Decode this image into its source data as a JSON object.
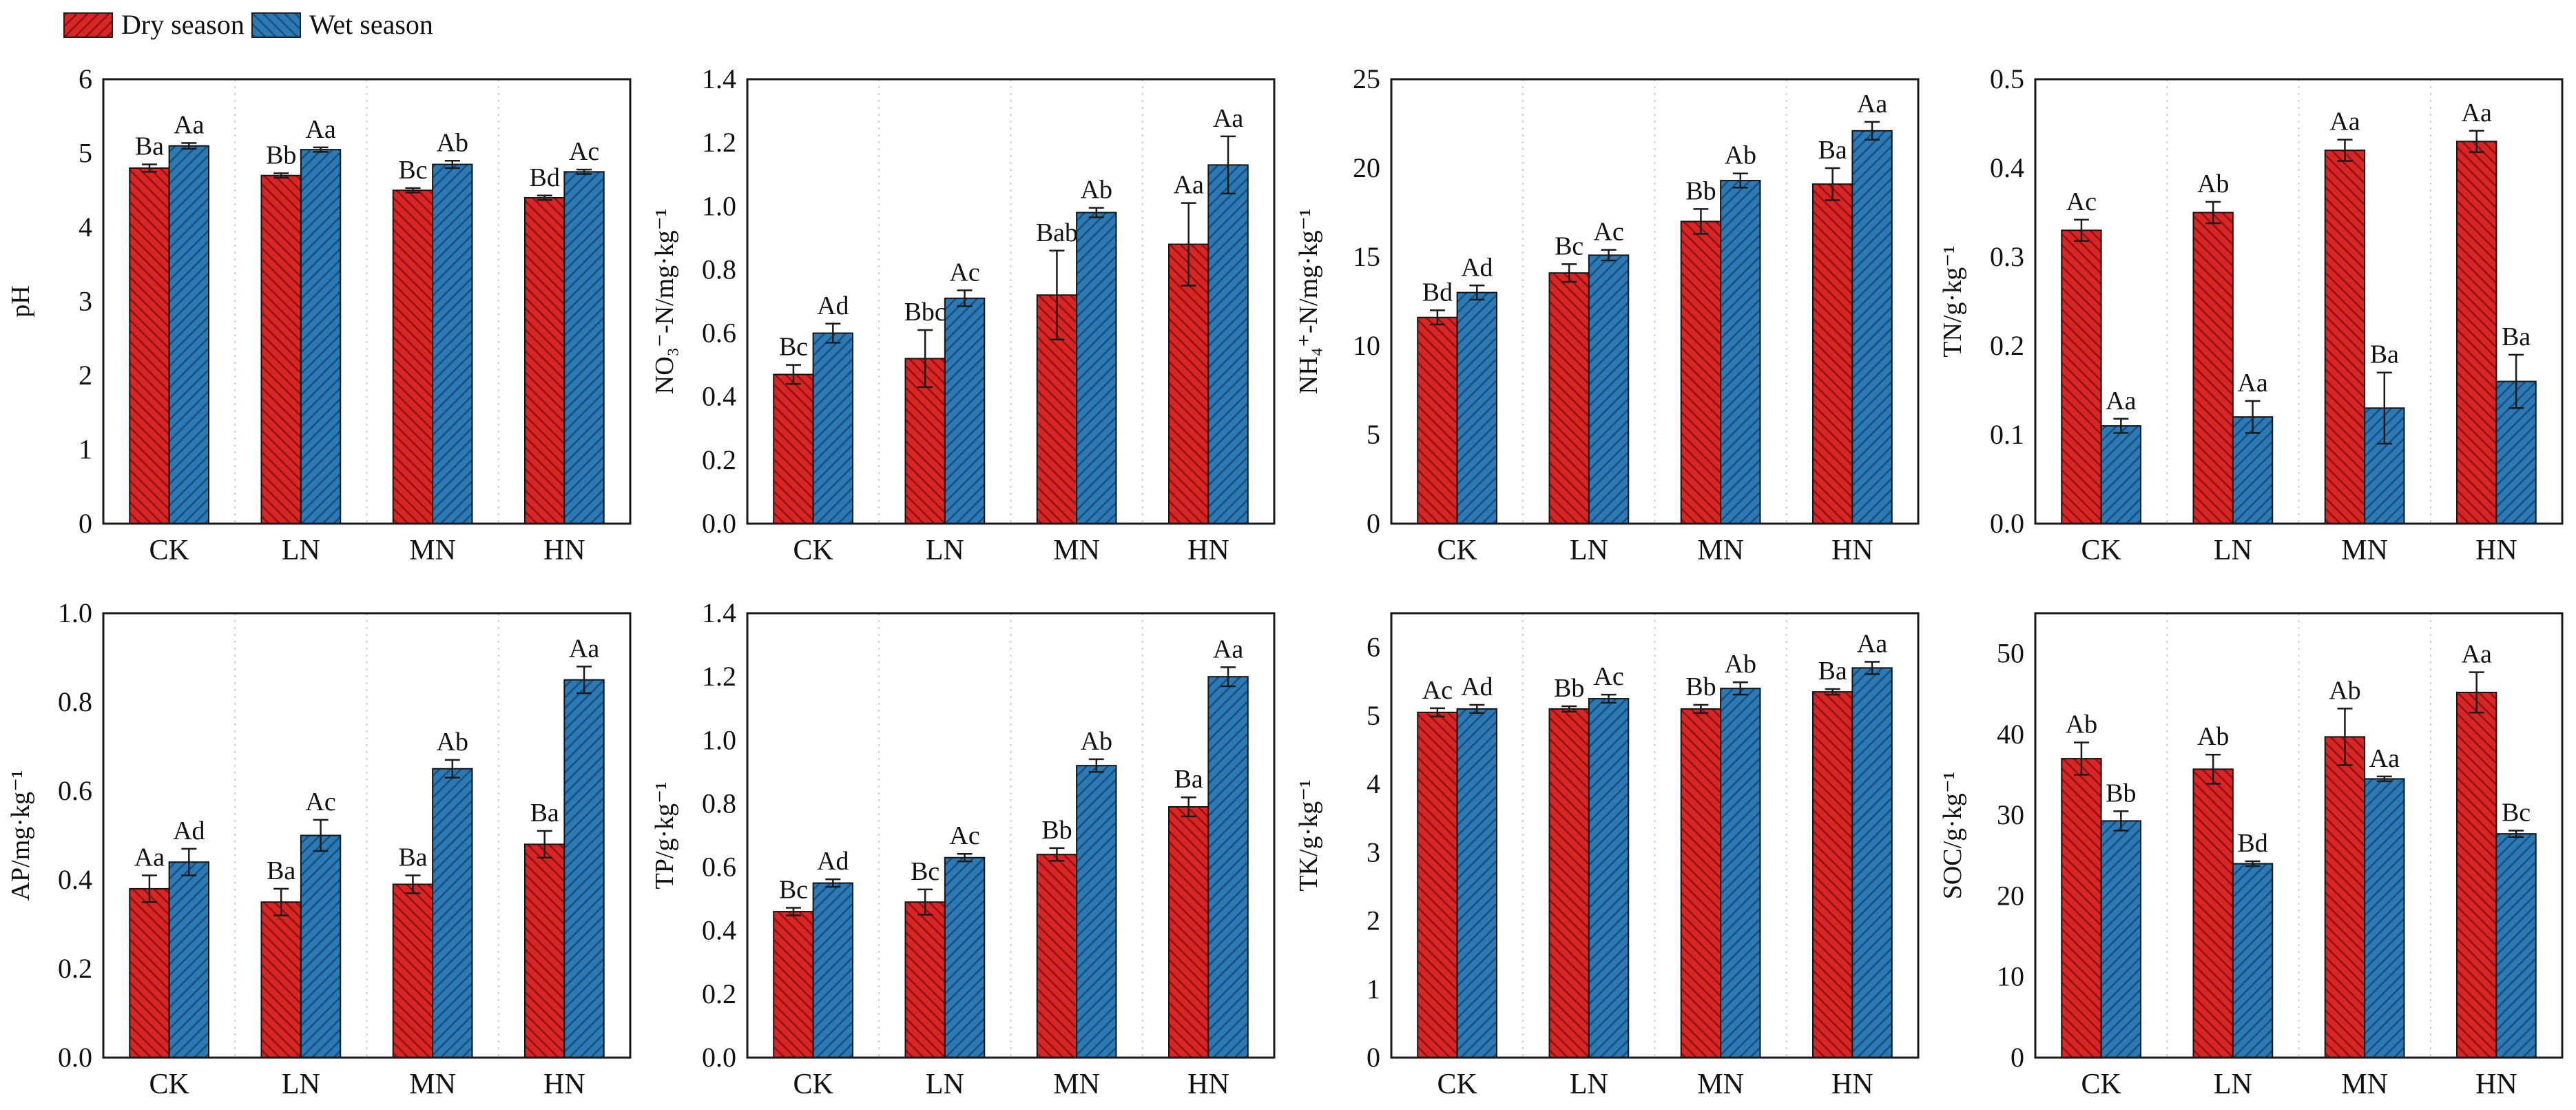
{
  "legend": {
    "items": [
      {
        "label": "Dry season",
        "fill": "#d92524",
        "hatch": "#8d1316",
        "hatch_direction": "forward"
      },
      {
        "label": "Wet season",
        "fill": "#2b7ab5",
        "hatch": "#17507d",
        "hatch_direction": "backward"
      }
    ]
  },
  "colors": {
    "dry_fill": "#d92524",
    "dry_hatch": "#8d1316",
    "wet_fill": "#2b7ab5",
    "wet_hatch": "#17507d",
    "frame": "#1a1a1a",
    "gridline": "#cccccc",
    "error_bar": "#1a1a1a"
  },
  "chart_data": [
    {
      "type": "bar",
      "name": "pH",
      "ylabel": "pH",
      "xlabel": "",
      "ylim": [
        0,
        6
      ],
      "grid": "vertical-dotted",
      "legend_position": "figure-top-left",
      "yticks": {
        "labels": [
          "0",
          "1",
          "2",
          "3",
          "4",
          "5",
          "6"
        ],
        "values": [
          0,
          1,
          2,
          3,
          4,
          5,
          6
        ]
      },
      "categories": [
        "CK",
        "LN",
        "MN",
        "HN"
      ],
      "series": [
        {
          "name": "Dry season",
          "values": [
            4.8,
            4.7,
            4.5,
            4.4
          ],
          "errors": [
            0.05,
            0.03,
            0.03,
            0.03
          ],
          "sig_labels": [
            "Ba",
            "Bb",
            "Bc",
            "Bd"
          ]
        },
        {
          "name": "Wet season",
          "values": [
            5.1,
            5.05,
            4.85,
            4.75
          ],
          "errors": [
            0.04,
            0.03,
            0.05,
            0.03
          ],
          "sig_labels": [
            "Aa",
            "Aa",
            "Ab",
            "Ac"
          ]
        }
      ]
    },
    {
      "type": "bar",
      "name": "NO3-N",
      "ylabel": "NO₃⁻-N/mg·kg⁻¹",
      "xlabel": "",
      "ylim": [
        0,
        1.4
      ],
      "grid": "vertical-dotted",
      "yticks": {
        "labels": [
          "0.0",
          "0.2",
          "0.4",
          "0.6",
          "0.8",
          "1.0",
          "1.2",
          "1.4"
        ],
        "values": [
          0,
          0.2,
          0.4,
          0.6,
          0.8,
          1.0,
          1.2,
          1.4
        ]
      },
      "categories": [
        "CK",
        "LN",
        "MN",
        "HN"
      ],
      "series": [
        {
          "name": "Dry season",
          "values": [
            0.47,
            0.52,
            0.72,
            0.88
          ],
          "errors": [
            0.03,
            0.09,
            0.14,
            0.13
          ],
          "sig_labels": [
            "Bc",
            "Bbc",
            "Bab",
            "Aa"
          ]
        },
        {
          "name": "Wet season",
          "values": [
            0.6,
            0.71,
            0.98,
            1.13
          ],
          "errors": [
            0.03,
            0.025,
            0.015,
            0.09
          ],
          "sig_labels": [
            "Ad",
            "Ac",
            "Ab",
            "Aa"
          ]
        }
      ]
    },
    {
      "type": "bar",
      "name": "NH4-N",
      "ylabel": "NH₄⁺-N/mg·kg⁻¹",
      "xlabel": "",
      "ylim": [
        0,
        25
      ],
      "grid": "vertical-dotted",
      "yticks": {
        "labels": [
          "0",
          "5",
          "10",
          "15",
          "20",
          "25"
        ],
        "values": [
          0,
          5,
          10,
          15,
          20,
          25
        ]
      },
      "categories": [
        "CK",
        "LN",
        "MN",
        "HN"
      ],
      "series": [
        {
          "name": "Dry season",
          "values": [
            11.6,
            14.1,
            17.0,
            19.1
          ],
          "errors": [
            0.4,
            0.5,
            0.7,
            0.9
          ],
          "sig_labels": [
            "Bd",
            "Bc",
            "Bb",
            "Ba"
          ]
        },
        {
          "name": "Wet season",
          "values": [
            13.0,
            15.1,
            19.3,
            22.1
          ],
          "errors": [
            0.4,
            0.3,
            0.4,
            0.5
          ],
          "sig_labels": [
            "Ad",
            "Ac",
            "Ab",
            "Aa"
          ]
        }
      ]
    },
    {
      "type": "bar",
      "name": "TN",
      "ylabel": "TN/g·kg⁻¹",
      "xlabel": "",
      "ylim": [
        0,
        0.5
      ],
      "grid": "vertical-dotted",
      "yticks": {
        "labels": [
          "0.0",
          "0.1",
          "0.2",
          "0.3",
          "0.4",
          "0.5"
        ],
        "values": [
          0,
          0.1,
          0.2,
          0.3,
          0.4,
          0.5
        ]
      },
      "categories": [
        "CK",
        "LN",
        "MN",
        "HN"
      ],
      "series": [
        {
          "name": "Dry season",
          "values": [
            0.33,
            0.35,
            0.42,
            0.43
          ],
          "errors": [
            0.012,
            0.012,
            0.012,
            0.012
          ],
          "sig_labels": [
            "Ac",
            "Ab",
            "Aa",
            "Aa"
          ]
        },
        {
          "name": "Wet season",
          "values": [
            0.11,
            0.12,
            0.13,
            0.16
          ],
          "errors": [
            0.008,
            0.018,
            0.04,
            0.03
          ],
          "sig_labels": [
            "Aa",
            "Aa",
            "Ba",
            "Ba"
          ]
        }
      ]
    },
    {
      "type": "bar",
      "name": "AP",
      "ylabel": "AP/mg·kg⁻¹",
      "xlabel": "",
      "ylim": [
        0,
        1.0
      ],
      "grid": "vertical-dotted",
      "yticks": {
        "labels": [
          "0.0",
          "0.2",
          "0.4",
          "0.6",
          "0.8",
          "1.0"
        ],
        "values": [
          0,
          0.2,
          0.4,
          0.6,
          0.8,
          1.0
        ]
      },
      "categories": [
        "CK",
        "LN",
        "MN",
        "HN"
      ],
      "series": [
        {
          "name": "Dry season",
          "values": [
            0.38,
            0.35,
            0.39,
            0.48
          ],
          "errors": [
            0.03,
            0.03,
            0.02,
            0.03
          ],
          "sig_labels": [
            "Aa",
            "Ba",
            "Ba",
            "Ba"
          ]
        },
        {
          "name": "Wet season",
          "values": [
            0.44,
            0.5,
            0.65,
            0.85
          ],
          "errors": [
            0.03,
            0.035,
            0.02,
            0.03
          ],
          "sig_labels": [
            "Ad",
            "Ac",
            "Ab",
            "Aa"
          ]
        }
      ]
    },
    {
      "type": "bar",
      "name": "TP",
      "ylabel": "TP/g·kg⁻¹",
      "xlabel": "",
      "ylim": [
        0,
        1.4
      ],
      "grid": "vertical-dotted",
      "yticks": {
        "labels": [
          "0.0",
          "0.2",
          "0.4",
          "0.6",
          "0.8",
          "1.0",
          "1.2",
          "1.4"
        ],
        "values": [
          0,
          0.2,
          0.4,
          0.6,
          0.8,
          1.0,
          1.2,
          1.4
        ]
      },
      "categories": [
        "CK",
        "LN",
        "MN",
        "HN"
      ],
      "series": [
        {
          "name": "Dry season",
          "values": [
            0.46,
            0.49,
            0.64,
            0.79
          ],
          "errors": [
            0.012,
            0.04,
            0.02,
            0.03
          ],
          "sig_labels": [
            "Bc",
            "Bc",
            "Bb",
            "Ba"
          ]
        },
        {
          "name": "Wet season",
          "values": [
            0.55,
            0.63,
            0.92,
            1.2
          ],
          "errors": [
            0.012,
            0.012,
            0.02,
            0.03
          ],
          "sig_labels": [
            "Ad",
            "Ac",
            "Ab",
            "Aa"
          ]
        }
      ]
    },
    {
      "type": "bar",
      "name": "TK",
      "ylabel": "TK/g·kg⁻¹",
      "xlabel": "",
      "ylim": [
        0,
        6.5
      ],
      "grid": "vertical-dotted",
      "yticks": {
        "labels": [
          "0",
          "1",
          "2",
          "3",
          "4",
          "5",
          "6"
        ],
        "values": [
          0,
          1,
          2,
          3,
          4,
          5,
          6
        ]
      },
      "categories": [
        "CK",
        "LN",
        "MN",
        "HN"
      ],
      "series": [
        {
          "name": "Dry season",
          "values": [
            5.05,
            5.1,
            5.1,
            5.35
          ],
          "errors": [
            0.06,
            0.04,
            0.06,
            0.04
          ],
          "sig_labels": [
            "Ac",
            "Bb",
            "Bb",
            "Ba"
          ]
        },
        {
          "name": "Wet season",
          "values": [
            5.1,
            5.25,
            5.4,
            5.7
          ],
          "errors": [
            0.06,
            0.06,
            0.09,
            0.09
          ],
          "sig_labels": [
            "Ad",
            "Ac",
            "Ab",
            "Aa"
          ]
        }
      ]
    },
    {
      "type": "bar",
      "name": "SOC",
      "ylabel": "SOC/g·kg⁻¹",
      "xlabel": "",
      "ylim": [
        0,
        55
      ],
      "grid": "vertical-dotted",
      "yticks": {
        "labels": [
          "0",
          "10",
          "20",
          "30",
          "40",
          "50"
        ],
        "values": [
          0,
          10,
          20,
          30,
          40,
          50
        ]
      },
      "categories": [
        "CK",
        "LN",
        "MN",
        "HN"
      ],
      "series": [
        {
          "name": "Dry season",
          "values": [
            37.0,
            35.7,
            39.7,
            45.2
          ],
          "errors": [
            2.0,
            1.8,
            3.5,
            2.5
          ],
          "sig_labels": [
            "Ab",
            "Ab",
            "Ab",
            "Aa"
          ]
        },
        {
          "name": "Wet season",
          "values": [
            29.3,
            24.0,
            34.5,
            27.7
          ],
          "errors": [
            1.2,
            0.3,
            0.3,
            0.4
          ],
          "sig_labels": [
            "Bb",
            "Bd",
            "Aa",
            "Bc"
          ]
        }
      ]
    }
  ]
}
